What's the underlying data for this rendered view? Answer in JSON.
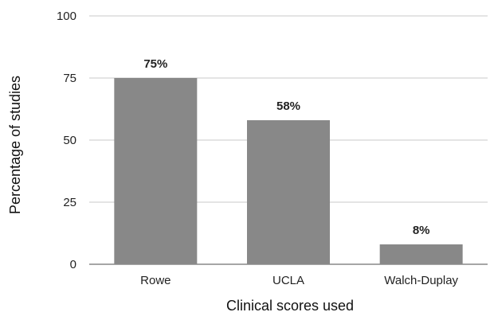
{
  "chart_data": {
    "type": "bar",
    "title": "",
    "xlabel": "Clinical scores used",
    "ylabel": "Percentage of studies",
    "categories": [
      "Rowe",
      "UCLA",
      "Walch-Duplay"
    ],
    "values": [
      75,
      58,
      8
    ],
    "data_labels": [
      "75%",
      "58%",
      "8%"
    ],
    "ylim": [
      0,
      100
    ],
    "yticks": [
      0,
      25,
      50,
      75,
      100
    ],
    "grid": true,
    "legend": "none",
    "bar_color": "#888888",
    "grid_color": "#c8c8c8"
  }
}
